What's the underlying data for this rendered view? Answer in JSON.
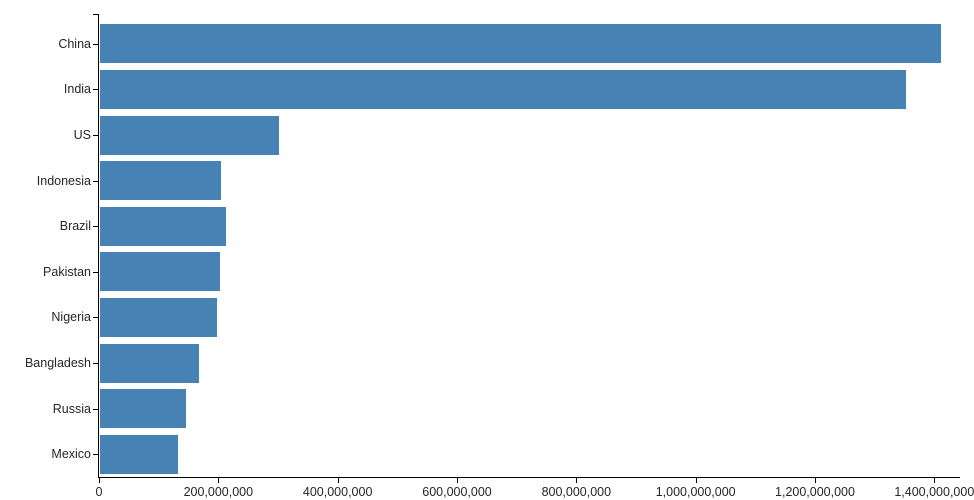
{
  "chart_data": {
    "type": "bar",
    "orientation": "horizontal",
    "title": "",
    "xlabel": "",
    "ylabel": "",
    "categories": [
      "China",
      "India",
      "US",
      "Indonesia",
      "Brazil",
      "Pakistan",
      "Nigeria",
      "Bangladesh",
      "Russia",
      "Mexico"
    ],
    "values": [
      1410000000,
      1350000000,
      300000000,
      202000000,
      211000000,
      201000000,
      196000000,
      166000000,
      144000000,
      131000000
    ],
    "xlim": [
      0,
      1443000000
    ],
    "x_ticks": [
      0,
      200000000,
      400000000,
      600000000,
      800000000,
      1000000000,
      1200000000,
      1400000000
    ],
    "x_tick_labels": [
      "0",
      "200,000,000",
      "400,000,000",
      "600,000,000",
      "800,000,000",
      "1,000,000,000",
      "1,200,000,000",
      "1,400,000,000"
    ],
    "grid": false,
    "legend": null,
    "bar_color": "#4682b4",
    "axis_color": "#000000",
    "label_color": "#262626"
  }
}
